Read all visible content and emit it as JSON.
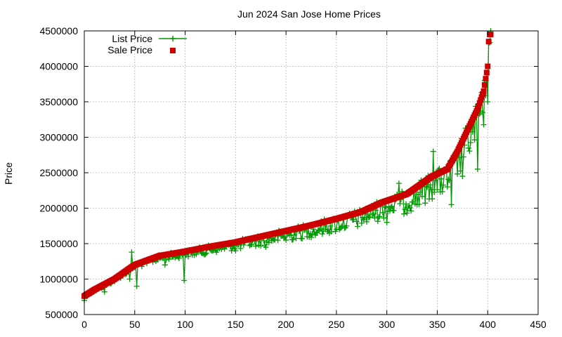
{
  "chart_data": {
    "type": "scatter",
    "title": "Jun 2024 San Jose Home Prices",
    "xlabel": "",
    "ylabel": "Price",
    "xlim": [
      0,
      450
    ],
    "ylim": [
      500000,
      4500000
    ],
    "x_ticks": [
      0,
      50,
      100,
      150,
      200,
      250,
      300,
      350,
      400,
      450
    ],
    "y_ticks": [
      500000,
      1000000,
      1500000,
      2000000,
      2500000,
      3000000,
      3500000,
      4000000,
      4500000
    ],
    "grid": true,
    "legend_position": "top-left",
    "colors": {
      "list_price": "#009900",
      "sale_price": "#cc0000"
    },
    "series": [
      {
        "name": "List Price",
        "style": "linespoints",
        "marker": "plus",
        "description_points": [
          [
            0,
            700000
          ],
          [
            20,
            820000
          ],
          [
            45,
            1000000
          ],
          [
            47,
            1380000
          ],
          [
            52,
            900000
          ],
          [
            80,
            1200000
          ],
          [
            99,
            980000
          ],
          [
            120,
            1350000
          ],
          [
            150,
            1400000
          ],
          [
            180,
            1450000
          ],
          [
            200,
            1550000
          ],
          [
            230,
            1650000
          ],
          [
            260,
            1750000
          ],
          [
            300,
            1800000
          ],
          [
            312,
            2350000
          ],
          [
            330,
            2050000
          ],
          [
            346,
            2800000
          ],
          [
            360,
            2300000
          ],
          [
            364,
            2050000
          ],
          [
            375,
            2450000
          ],
          [
            390,
            2550000
          ],
          [
            395,
            3350000
          ],
          [
            400,
            3500000
          ],
          [
            403,
            4500000
          ]
        ]
      },
      {
        "name": "Sale Price",
        "style": "points",
        "marker": "square",
        "description_points": [
          [
            0,
            760000
          ],
          [
            10,
            850000
          ],
          [
            30,
            1000000
          ],
          [
            50,
            1200000
          ],
          [
            75,
            1330000
          ],
          [
            100,
            1390000
          ],
          [
            125,
            1460000
          ],
          [
            150,
            1520000
          ],
          [
            175,
            1600000
          ],
          [
            200,
            1680000
          ],
          [
            225,
            1760000
          ],
          [
            250,
            1850000
          ],
          [
            275,
            1950000
          ],
          [
            295,
            2080000
          ],
          [
            320,
            2200000
          ],
          [
            345,
            2450000
          ],
          [
            360,
            2550000
          ],
          [
            370,
            2800000
          ],
          [
            380,
            3100000
          ],
          [
            390,
            3400000
          ],
          [
            396,
            3650000
          ],
          [
            400,
            4000000
          ],
          [
            401,
            4350000
          ],
          [
            402,
            4450000
          ]
        ]
      }
    ]
  }
}
